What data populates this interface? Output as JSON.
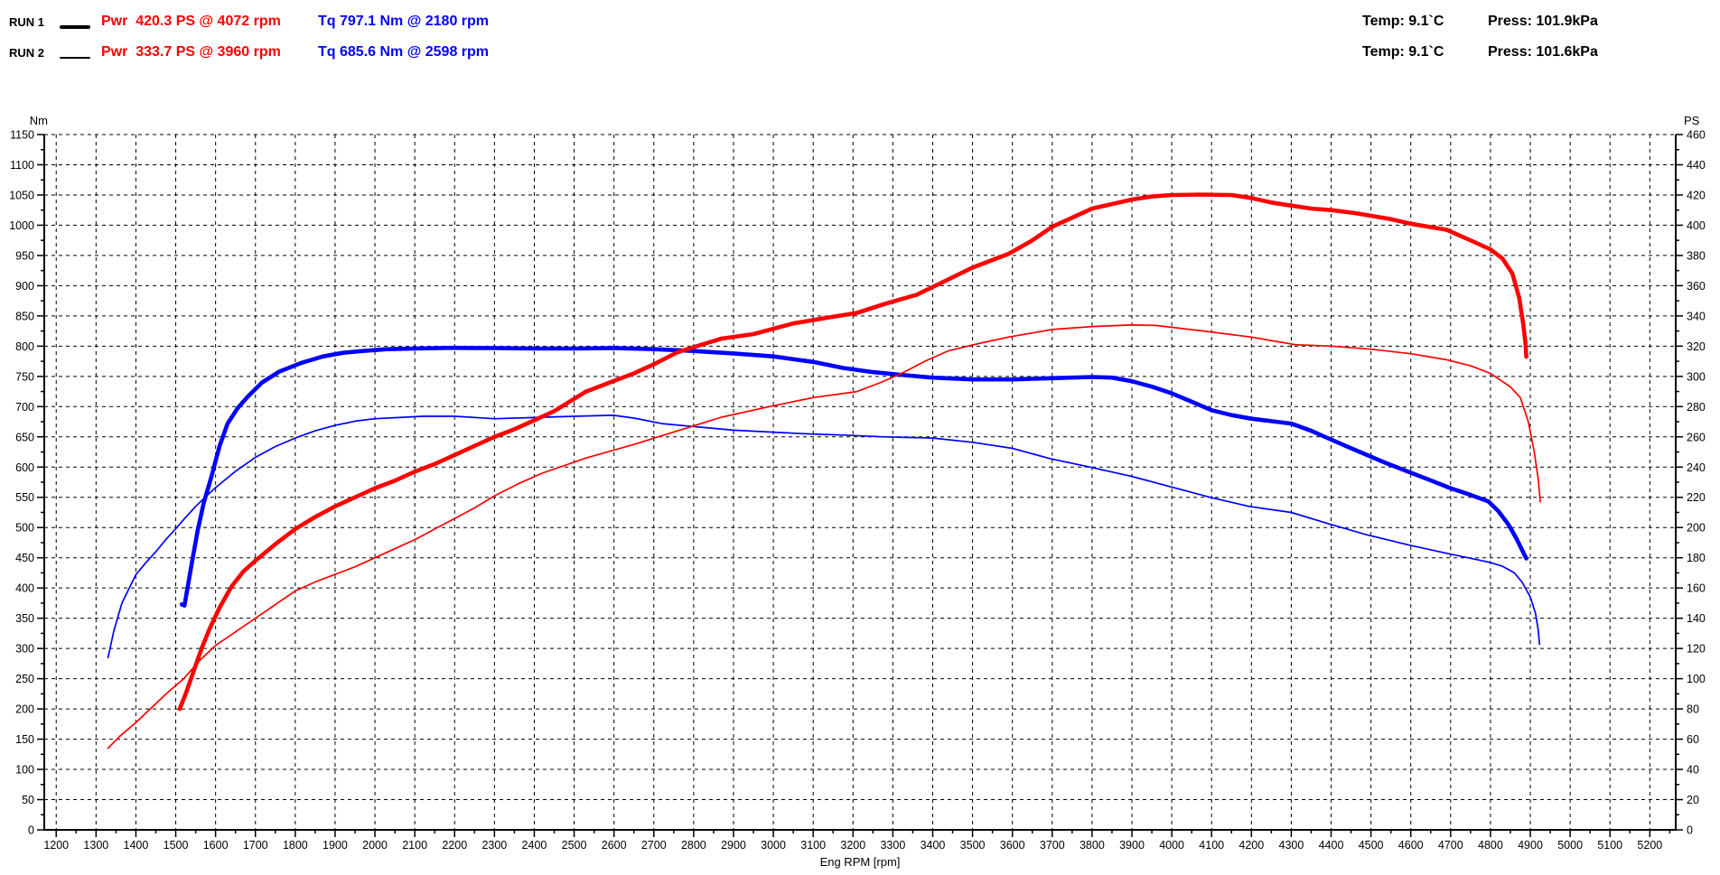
{
  "header": {
    "runs": [
      {
        "label": "RUN 1",
        "pwr": "Pwr  420.3 PS @ 4072 rpm",
        "tq": "Tq 797.1 Nm @ 2180 rpm",
        "temp": "Temp: 9.1`C",
        "press": "Press: 101.9kPa"
      },
      {
        "label": "RUN 2",
        "pwr": "Pwr  333.7 PS @ 3960 rpm",
        "tq": "Tq 685.6 Nm @ 2598 rpm",
        "temp": "Temp: 9.1`C",
        "press": "Press: 101.6kPa"
      }
    ]
  },
  "chart_data": {
    "type": "line",
    "xlabel": "Eng RPM [rpm]",
    "grid": "dashed",
    "legend_position": "top-header",
    "x_axis": {
      "min": 1200,
      "max": 5200,
      "major_step": 100,
      "minor_step": 50
    },
    "left_axis": {
      "label": "Nm",
      "min": 0,
      "max": 1150,
      "major_step": 50,
      "minor_step": 25
    },
    "right_axis": {
      "label": "PS",
      "min": 0,
      "max": 460,
      "major_step": 20,
      "minor_step": 10
    },
    "colors": {
      "power": "#ff0000",
      "torque": "#0000ff",
      "axis": "#000000",
      "grid": "#000000"
    },
    "series": [
      {
        "name": "run2-torque",
        "run": "RUN 2",
        "quantity": "Torque",
        "unit": "Nm",
        "axis": "left",
        "color": "#0000ff",
        "width": 1.7,
        "points": [
          [
            1330,
            285
          ],
          [
            1345,
            330
          ],
          [
            1365,
            375
          ],
          [
            1385,
            402
          ],
          [
            1400,
            422
          ],
          [
            1425,
            442
          ],
          [
            1450,
            460
          ],
          [
            1475,
            480
          ],
          [
            1500,
            498
          ],
          [
            1525,
            517
          ],
          [
            1550,
            535
          ],
          [
            1575,
            551
          ],
          [
            1600,
            566
          ],
          [
            1650,
            593
          ],
          [
            1700,
            616
          ],
          [
            1750,
            634
          ],
          [
            1800,
            648
          ],
          [
            1850,
            660
          ],
          [
            1900,
            669
          ],
          [
            1950,
            676
          ],
          [
            2000,
            680
          ],
          [
            2060,
            682
          ],
          [
            2120,
            684
          ],
          [
            2200,
            684
          ],
          [
            2300,
            680
          ],
          [
            2400,
            682
          ],
          [
            2500,
            684
          ],
          [
            2598,
            685.6
          ],
          [
            2650,
            681
          ],
          [
            2720,
            672
          ],
          [
            2800,
            667
          ],
          [
            2900,
            661
          ],
          [
            2990,
            658
          ],
          [
            3080,
            655
          ],
          [
            3175,
            653
          ],
          [
            3280,
            650
          ],
          [
            3400,
            648
          ],
          [
            3500,
            641
          ],
          [
            3600,
            631
          ],
          [
            3695,
            614
          ],
          [
            3795,
            600
          ],
          [
            3897,
            585
          ],
          [
            3994,
            568
          ],
          [
            4096,
            550
          ],
          [
            4194,
            535
          ],
          [
            4300,
            525
          ],
          [
            4395,
            506
          ],
          [
            4490,
            488
          ],
          [
            4595,
            471
          ],
          [
            4700,
            456
          ],
          [
            4795,
            443
          ],
          [
            4830,
            436
          ],
          [
            4860,
            425
          ],
          [
            4880,
            409
          ],
          [
            4900,
            385
          ],
          [
            4913,
            358
          ],
          [
            4920,
            330
          ],
          [
            4923,
            307
          ]
        ]
      },
      {
        "name": "run1-torque",
        "run": "RUN 1",
        "quantity": "Torque",
        "unit": "Nm",
        "axis": "left",
        "color": "#0000ff",
        "width": 4.6,
        "points": [
          [
            1515,
            373
          ],
          [
            1522,
            371
          ],
          [
            1540,
            440
          ],
          [
            1555,
            495
          ],
          [
            1570,
            540
          ],
          [
            1590,
            585
          ],
          [
            1610,
            635
          ],
          [
            1630,
            672
          ],
          [
            1655,
            697
          ],
          [
            1680,
            716
          ],
          [
            1717,
            740
          ],
          [
            1760,
            758
          ],
          [
            1814,
            772
          ],
          [
            1870,
            783
          ],
          [
            1920,
            789
          ],
          [
            1970,
            792
          ],
          [
            2030,
            795
          ],
          [
            2100,
            796
          ],
          [
            2180,
            797.1
          ],
          [
            2250,
            797
          ],
          [
            2300,
            797
          ],
          [
            2400,
            796
          ],
          [
            2500,
            796
          ],
          [
            2600,
            797
          ],
          [
            2700,
            795
          ],
          [
            2800,
            792
          ],
          [
            2900,
            788
          ],
          [
            3000,
            783
          ],
          [
            3100,
            774
          ],
          [
            3175,
            764
          ],
          [
            3250,
            757
          ],
          [
            3330,
            752
          ],
          [
            3400,
            748
          ],
          [
            3500,
            745
          ],
          [
            3600,
            745
          ],
          [
            3700,
            747
          ],
          [
            3800,
            749
          ],
          [
            3850,
            748
          ],
          [
            3900,
            742
          ],
          [
            3950,
            733
          ],
          [
            4000,
            722
          ],
          [
            4050,
            708
          ],
          [
            4100,
            694
          ],
          [
            4150,
            686
          ],
          [
            4200,
            680
          ],
          [
            4250,
            676
          ],
          [
            4300,
            672
          ],
          [
            4350,
            660
          ],
          [
            4395,
            647
          ],
          [
            4440,
            634
          ],
          [
            4490,
            620
          ],
          [
            4540,
            606
          ],
          [
            4595,
            592
          ],
          [
            4650,
            578
          ],
          [
            4700,
            565
          ],
          [
            4750,
            554
          ],
          [
            4795,
            543
          ],
          [
            4820,
            527
          ],
          [
            4845,
            505
          ],
          [
            4865,
            482
          ],
          [
            4880,
            462
          ],
          [
            4890,
            449
          ]
        ]
      },
      {
        "name": "run2-power",
        "run": "RUN 2",
        "quantity": "Power",
        "unit": "PS",
        "axis": "right",
        "color": "#ff0000",
        "width": 1.7,
        "points": [
          [
            1330,
            54
          ],
          [
            1360,
            62
          ],
          [
            1400,
            71
          ],
          [
            1440,
            81
          ],
          [
            1480,
            91
          ],
          [
            1520,
            100
          ],
          [
            1560,
            112
          ],
          [
            1600,
            122
          ],
          [
            1650,
            131
          ],
          [
            1700,
            140
          ],
          [
            1750,
            149
          ],
          [
            1800,
            158
          ],
          [
            1850,
            164
          ],
          [
            1900,
            169
          ],
          [
            1950,
            174
          ],
          [
            2000,
            180
          ],
          [
            2050,
            186
          ],
          [
            2100,
            192
          ],
          [
            2150,
            199
          ],
          [
            2200,
            206
          ],
          [
            2250,
            213
          ],
          [
            2300,
            221
          ],
          [
            2360,
            229
          ],
          [
            2420,
            236
          ],
          [
            2530,
            246
          ],
          [
            2650,
            255
          ],
          [
            2760,
            264
          ],
          [
            2870,
            273
          ],
          [
            2990,
            280
          ],
          [
            3100,
            286
          ],
          [
            3210,
            290
          ],
          [
            3270,
            296
          ],
          [
            3330,
            303
          ],
          [
            3380,
            310
          ],
          [
            3440,
            317
          ],
          [
            3520,
            322
          ],
          [
            3590,
            326
          ],
          [
            3700,
            331
          ],
          [
            3800,
            333
          ],
          [
            3900,
            334
          ],
          [
            3960,
            333.7
          ],
          [
            4080,
            330
          ],
          [
            4200,
            326
          ],
          [
            4310,
            321
          ],
          [
            4400,
            320
          ],
          [
            4500,
            318
          ],
          [
            4600,
            315
          ],
          [
            4690,
            311
          ],
          [
            4750,
            307
          ],
          [
            4800,
            302
          ],
          [
            4850,
            293
          ],
          [
            4875,
            286
          ],
          [
            4895,
            270
          ],
          [
            4910,
            250
          ],
          [
            4920,
            232
          ],
          [
            4925,
            217
          ]
        ]
      },
      {
        "name": "run1-power",
        "run": "RUN 1",
        "quantity": "Power",
        "unit": "PS",
        "axis": "right",
        "color": "#ff0000",
        "width": 4.6,
        "points": [
          [
            1510,
            80
          ],
          [
            1525,
            90
          ],
          [
            1545,
            105
          ],
          [
            1565,
            120
          ],
          [
            1585,
            133
          ],
          [
            1610,
            147
          ],
          [
            1640,
            161
          ],
          [
            1670,
            171
          ],
          [
            1700,
            178
          ],
          [
            1750,
            189
          ],
          [
            1800,
            199
          ],
          [
            1850,
            207
          ],
          [
            1900,
            214
          ],
          [
            1950,
            220
          ],
          [
            2000,
            226
          ],
          [
            2050,
            231
          ],
          [
            2100,
            237
          ],
          [
            2150,
            242
          ],
          [
            2200,
            248
          ],
          [
            2250,
            254
          ],
          [
            2300,
            260
          ],
          [
            2350,
            265
          ],
          [
            2400,
            271
          ],
          [
            2450,
            277
          ],
          [
            2530,
            290
          ],
          [
            2600,
            297
          ],
          [
            2650,
            302
          ],
          [
            2700,
            308
          ],
          [
            2760,
            316
          ],
          [
            2820,
            321
          ],
          [
            2870,
            325
          ],
          [
            2950,
            328
          ],
          [
            3050,
            335
          ],
          [
            3140,
            339
          ],
          [
            3210,
            342
          ],
          [
            3280,
            348
          ],
          [
            3360,
            354
          ],
          [
            3430,
            363
          ],
          [
            3500,
            372
          ],
          [
            3590,
            381
          ],
          [
            3650,
            390
          ],
          [
            3700,
            399
          ],
          [
            3750,
            405
          ],
          [
            3800,
            411
          ],
          [
            3850,
            414
          ],
          [
            3900,
            417
          ],
          [
            3950,
            419
          ],
          [
            4000,
            420
          ],
          [
            4072,
            420.3
          ],
          [
            4150,
            420
          ],
          [
            4200,
            418
          ],
          [
            4250,
            415
          ],
          [
            4300,
            413
          ],
          [
            4350,
            411
          ],
          [
            4400,
            410
          ],
          [
            4460,
            408
          ],
          [
            4550,
            404
          ],
          [
            4600,
            401
          ],
          [
            4690,
            397
          ],
          [
            4750,
            390
          ],
          [
            4800,
            384
          ],
          [
            4830,
            378
          ],
          [
            4855,
            368
          ],
          [
            4872,
            352
          ],
          [
            4882,
            335
          ],
          [
            4888,
            322
          ],
          [
            4890,
            313
          ]
        ]
      }
    ]
  }
}
